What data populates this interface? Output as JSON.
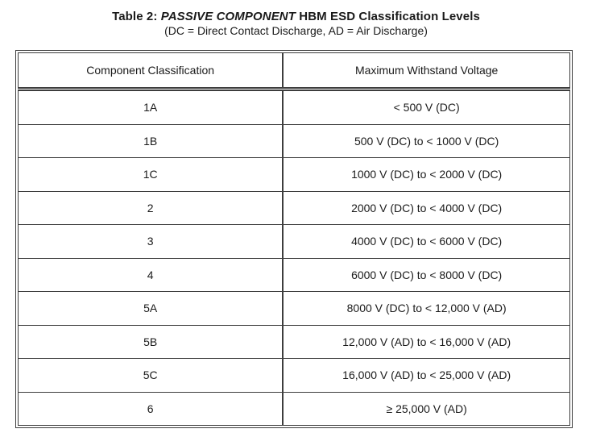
{
  "caption": {
    "prefix": "Table 2: ",
    "emphasis": "PASSIVE COMPONENT",
    "suffix": " HBM ESD Classification Levels",
    "subtitle": "(DC = Direct Contact Discharge, AD = Air Discharge)"
  },
  "table": {
    "headers": [
      "Component Classification",
      "Maximum Withstand Voltage"
    ],
    "rows": [
      [
        "1A",
        "< 500 V (DC)"
      ],
      [
        "1B",
        "500 V (DC) to < 1000 V (DC)"
      ],
      [
        "1C",
        "1000 V (DC) to < 2000 V (DC)"
      ],
      [
        "2",
        "2000 V (DC) to < 4000 V (DC)"
      ],
      [
        "3",
        "4000 V (DC) to < 6000 V (DC)"
      ],
      [
        "4",
        "6000 V (DC) to < 8000 V (DC)"
      ],
      [
        "5A",
        "8000 V (DC) to < 12,000 V (AD)"
      ],
      [
        "5B",
        "12,000 V (AD) to < 16,000 V (AD)"
      ],
      [
        "5C",
        "16,000 V (AD) to < 25,000 V (AD)"
      ],
      [
        "6",
        "≥ 25,000 V (AD)"
      ]
    ]
  },
  "colors": {
    "border": "#3d3d3d",
    "text": "#1a1a1a",
    "background": "#ffffff"
  }
}
